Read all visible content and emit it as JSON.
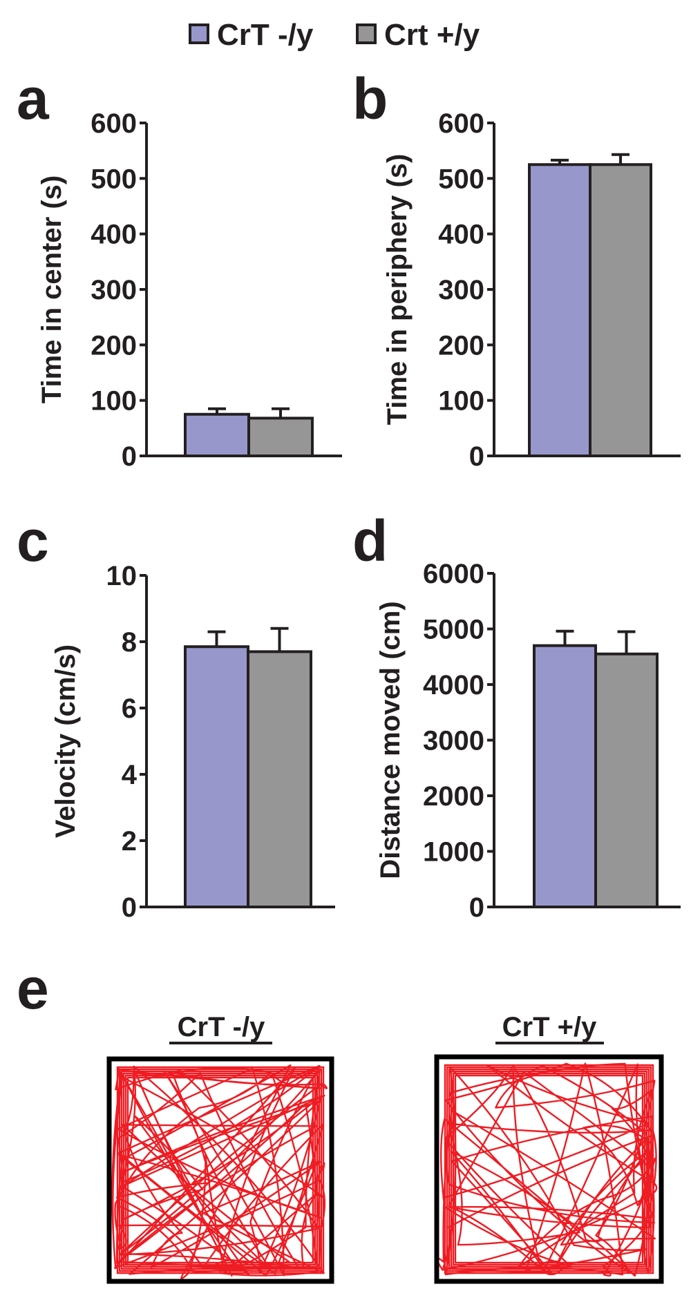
{
  "legend": [
    {
      "label": "CrT -/y",
      "color": "#9797cb"
    },
    {
      "label": "Crt +/y",
      "color": "#969696"
    }
  ],
  "colors": {
    "axis": "#231f20",
    "track": "#ee1c23"
  },
  "chart_data": [
    {
      "panel": "a",
      "type": "bar",
      "ylabel": "Time in center (s)",
      "ylim": [
        0,
        600
      ],
      "yticks": [
        0,
        100,
        200,
        300,
        400,
        500,
        600
      ],
      "series": [
        {
          "name": "CrT -/y",
          "value": 75,
          "error": 10
        },
        {
          "name": "Crt +/y",
          "value": 68,
          "error": 17
        }
      ]
    },
    {
      "panel": "b",
      "type": "bar",
      "ylabel": "Time in periphery (s)",
      "ylim": [
        0,
        600
      ],
      "yticks": [
        0,
        100,
        200,
        300,
        400,
        500,
        600
      ],
      "series": [
        {
          "name": "CrT -/y",
          "value": 525,
          "error": 8
        },
        {
          "name": "Crt +/y",
          "value": 525,
          "error": 18
        }
      ]
    },
    {
      "panel": "c",
      "type": "bar",
      "ylabel": "Velocity (cm/s)",
      "ylim": [
        0,
        10
      ],
      "yticks": [
        0,
        2,
        4,
        6,
        8,
        10
      ],
      "series": [
        {
          "name": "CrT -/y",
          "value": 7.85,
          "error": 0.45
        },
        {
          "name": "Crt +/y",
          "value": 7.7,
          "error": 0.7
        }
      ]
    },
    {
      "panel": "d",
      "type": "bar",
      "ylabel": "Distance moved (cm)",
      "ylim": [
        0,
        6000
      ],
      "yticks": [
        0,
        1000,
        2000,
        3000,
        4000,
        5000,
        6000
      ],
      "series": [
        {
          "name": "CrT -/y",
          "value": 4700,
          "error": 260
        },
        {
          "name": "Crt +/y",
          "value": 4550,
          "error": 400
        }
      ]
    }
  ],
  "tracks": {
    "panel": "e",
    "items": [
      {
        "title": "CrT -/y"
      },
      {
        "title": "CrT +/y"
      }
    ]
  }
}
